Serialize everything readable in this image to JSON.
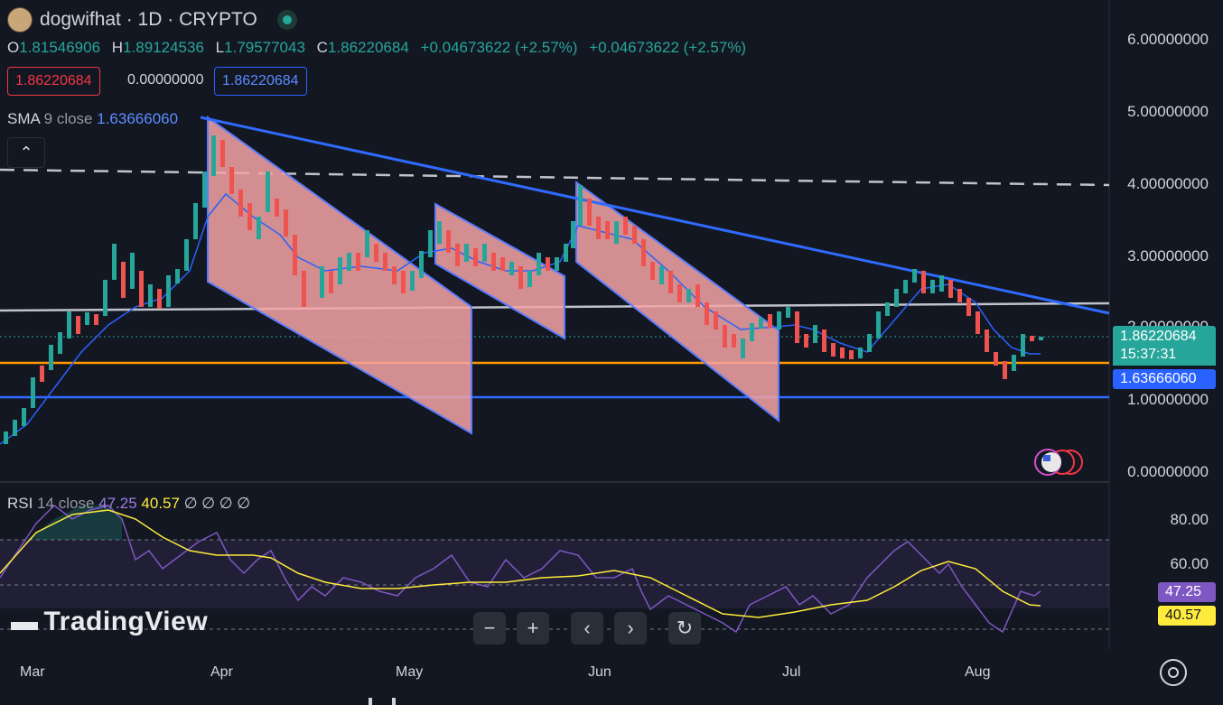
{
  "header": {
    "title": "dogwifhat · 1D · CRYPTO",
    "ohlc": {
      "o_label": "O",
      "o": "1.81546906",
      "h_label": "H",
      "h": "1.89124536",
      "l_label": "L",
      "l": "1.79577043",
      "c_label": "C",
      "c": "1.86220684",
      "change1": "+0.04673622 (+2.57%)",
      "change2": "+0.04673622 (+2.57%)"
    },
    "sell_price": "1.86220684",
    "spread": "0.00000000",
    "buy_price": "1.86220684"
  },
  "indicators": {
    "sma": {
      "name": "SMA",
      "params": "9 close",
      "value": "1.63666060"
    },
    "rsi": {
      "name": "RSI",
      "params": "14 close",
      "value": "47.25",
      "ma_value": "40.57",
      "extras": "∅ ∅ ∅ ∅"
    }
  },
  "price_axis": [
    "6.00000000",
    "5.00000000",
    "4.00000000",
    "3.00000000",
    "2.00000000",
    "1.00000000",
    "0.00000000"
  ],
  "rsi_axis": [
    "80.00",
    "60.00"
  ],
  "time_axis": [
    "Mar",
    "Apr",
    "May",
    "Jun",
    "Jul",
    "Aug"
  ],
  "tags": {
    "last_price": "1.86220684",
    "countdown": "15:37:31",
    "sma": "1.63666060",
    "rsi": "47.25",
    "rsi_ma": "40.57"
  },
  "branding": {
    "logo": "TradingView"
  },
  "colors": {
    "up": "#26a69a",
    "down": "#ef5350",
    "sma": "#2962ff",
    "trendline": "#2f6bff",
    "orange": "#ff9800",
    "rsi": "#7e57c2",
    "rsi_ma": "#ffeb3b"
  },
  "icons": [
    "collapse-up-icon",
    "zoom-out-icon",
    "zoom-in-icon",
    "scroll-left-icon",
    "scroll-right-icon",
    "reset-icon",
    "settings-gear-icon",
    "flag-us-icon"
  ]
}
